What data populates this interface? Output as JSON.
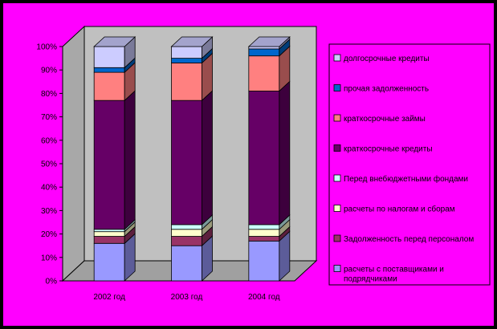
{
  "chart_data": {
    "type": "bar",
    "stacked": true,
    "percent": true,
    "title": "",
    "xlabel": "",
    "ylabel": "",
    "ylim": [
      0,
      100
    ],
    "yticks": [
      "0%",
      "10%",
      "20%",
      "30%",
      "40%",
      "50%",
      "60%",
      "70%",
      "80%",
      "90%",
      "100%"
    ],
    "categories": [
      "2002 год",
      "2003 год",
      "2004 год"
    ],
    "legend_position": "right",
    "grid": false,
    "series": [
      {
        "name": "расчеты с поставщиками и подрядчиками",
        "color": "#9999FF",
        "values": [
          16,
          15,
          17
        ]
      },
      {
        "name": "Задолженность перед персоналом",
        "color": "#993366",
        "values": [
          3,
          4,
          2
        ]
      },
      {
        "name": "расчеты по налогам и сборам",
        "color": "#FFFFCC",
        "values": [
          2,
          3,
          3
        ]
      },
      {
        "name": "Перед внебюджетными фондами",
        "color": "#CCFFFF",
        "values": [
          1,
          2,
          2
        ]
      },
      {
        "name": "краткосрочные кредиты",
        "color": "#660066",
        "values": [
          55,
          53,
          57
        ]
      },
      {
        "name": "краткосрочные займы",
        "color": "#FF8080",
        "values": [
          12,
          16,
          15
        ]
      },
      {
        "name": "прочая задолженность",
        "color": "#0066CC",
        "values": [
          2,
          2,
          3
        ]
      },
      {
        "name": "долгосрочные кредиты",
        "color": "#CCCCFF",
        "values": [
          9,
          5,
          1
        ]
      }
    ]
  }
}
